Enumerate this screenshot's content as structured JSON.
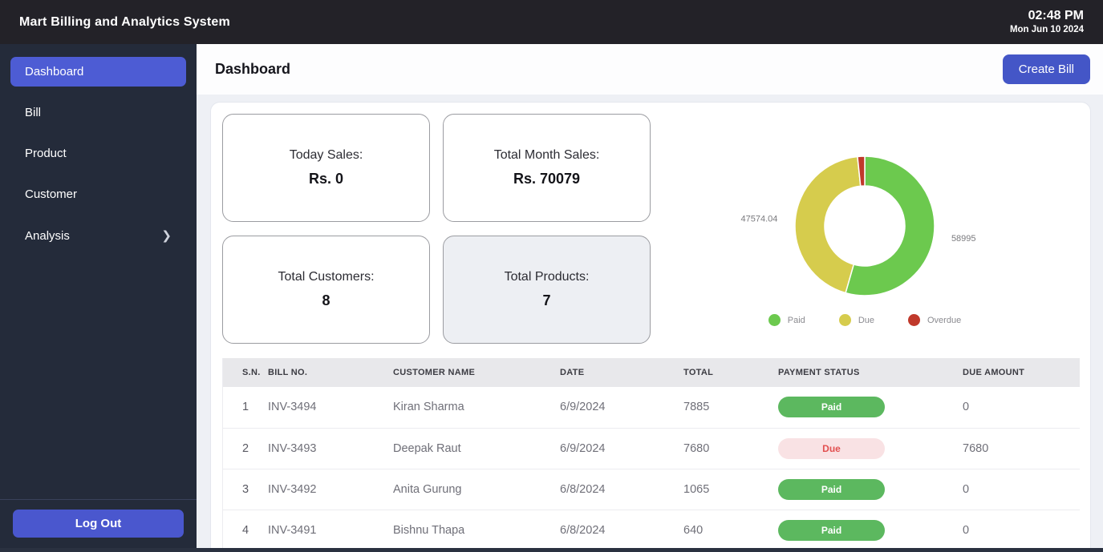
{
  "topbar": {
    "title": "Mart Billing and Analytics System",
    "time": "02:48 PM",
    "date": "Mon Jun 10 2024"
  },
  "sidebar": {
    "items": [
      {
        "label": "Dashboard",
        "active": true,
        "has_submenu": false
      },
      {
        "label": "Bill",
        "active": false,
        "has_submenu": false
      },
      {
        "label": "Product",
        "active": false,
        "has_submenu": false
      },
      {
        "label": "Customer",
        "active": false,
        "has_submenu": false
      },
      {
        "label": "Analysis",
        "active": false,
        "has_submenu": true
      }
    ],
    "logout_label": "Log Out"
  },
  "header": {
    "title": "Dashboard",
    "create_bill_label": "Create Bill"
  },
  "stats": [
    {
      "label": "Today Sales:",
      "value": "Rs. 0",
      "highlighted": false
    },
    {
      "label": "Total Month Sales:",
      "value": "Rs. 70079",
      "highlighted": false
    },
    {
      "label": "Total Customers:",
      "value": "8",
      "highlighted": false
    },
    {
      "label": "Total Products:",
      "value": "7",
      "highlighted": true
    }
  ],
  "chart_data": {
    "type": "pie",
    "style": "donut",
    "labels": [
      "Paid",
      "Due",
      "Overdue"
    ],
    "values": [
      58995,
      47574.04,
      1800
    ],
    "value_labels": [
      "58995",
      "47574.04",
      ""
    ],
    "colors": [
      "#6cc94e",
      "#d6cc4d",
      "#c0392b"
    ],
    "legend_position": "bottom",
    "note": "Overdue slice unlabeled in chart; value estimated from slice angle (~6 degrees)"
  },
  "table": {
    "headers": [
      "S.N.",
      "BILL NO.",
      "CUSTOMER NAME",
      "DATE",
      "TOTAL",
      "PAYMENT STATUS",
      "DUE AMOUNT"
    ],
    "rows": [
      {
        "sn": "1",
        "bill_no": "INV-3494",
        "customer": "Kiran Sharma",
        "date": "6/9/2024",
        "total": "7885",
        "status": "Paid",
        "due_amount": "0"
      },
      {
        "sn": "2",
        "bill_no": "INV-3493",
        "customer": "Deepak Raut",
        "date": "6/9/2024",
        "total": "7680",
        "status": "Due",
        "due_amount": "7680"
      },
      {
        "sn": "3",
        "bill_no": "INV-3492",
        "customer": "Anita Gurung",
        "date": "6/8/2024",
        "total": "1065",
        "status": "Paid",
        "due_amount": "0"
      },
      {
        "sn": "4",
        "bill_no": "INV-3491",
        "customer": "Bishnu Thapa",
        "date": "6/8/2024",
        "total": "640",
        "status": "Paid",
        "due_amount": "0"
      }
    ]
  },
  "colors": {
    "accent": "#4a57ce",
    "sidebar_active": "#4d5cd4",
    "paid_pill": "#5cb85f",
    "due_pill_bg": "#f9e2e4",
    "due_pill_text": "#e25050"
  }
}
